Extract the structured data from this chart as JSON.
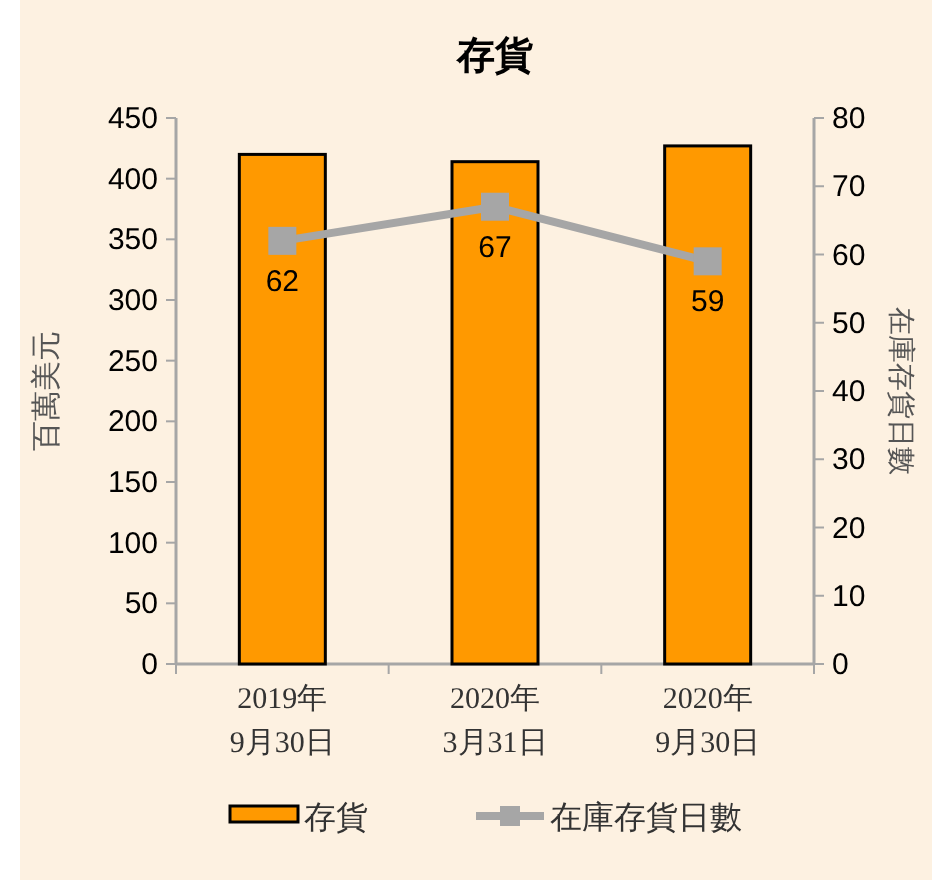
{
  "chart_data": {
    "type": "bar",
    "title": "存貨",
    "ylabel": "百萬美元",
    "y2label": "在庫存貨日數",
    "categories": [
      "2019年\n9月30日",
      "2020年\n3月31日",
      "2020年\n9月30日"
    ],
    "series": [
      {
        "name": "存貨",
        "color": "#ff9900",
        "values": [
          420,
          414,
          427
        ]
      },
      {
        "name": "在庫存貨日數",
        "type": "line",
        "axis": "y2",
        "color": "#a6a6a6",
        "marker": "square",
        "values": [
          62,
          67,
          59
        ],
        "value_labels": [
          "62",
          "67",
          "59"
        ]
      }
    ],
    "ylim": [
      0,
      450
    ],
    "yticks": [
      0,
      50,
      100,
      150,
      200,
      250,
      300,
      350,
      400,
      450
    ],
    "y2lim": [
      0,
      80
    ],
    "y2ticks": [
      0,
      10,
      20,
      30,
      40,
      50,
      60,
      70,
      80
    ],
    "legend": "bottom",
    "grid": false
  }
}
